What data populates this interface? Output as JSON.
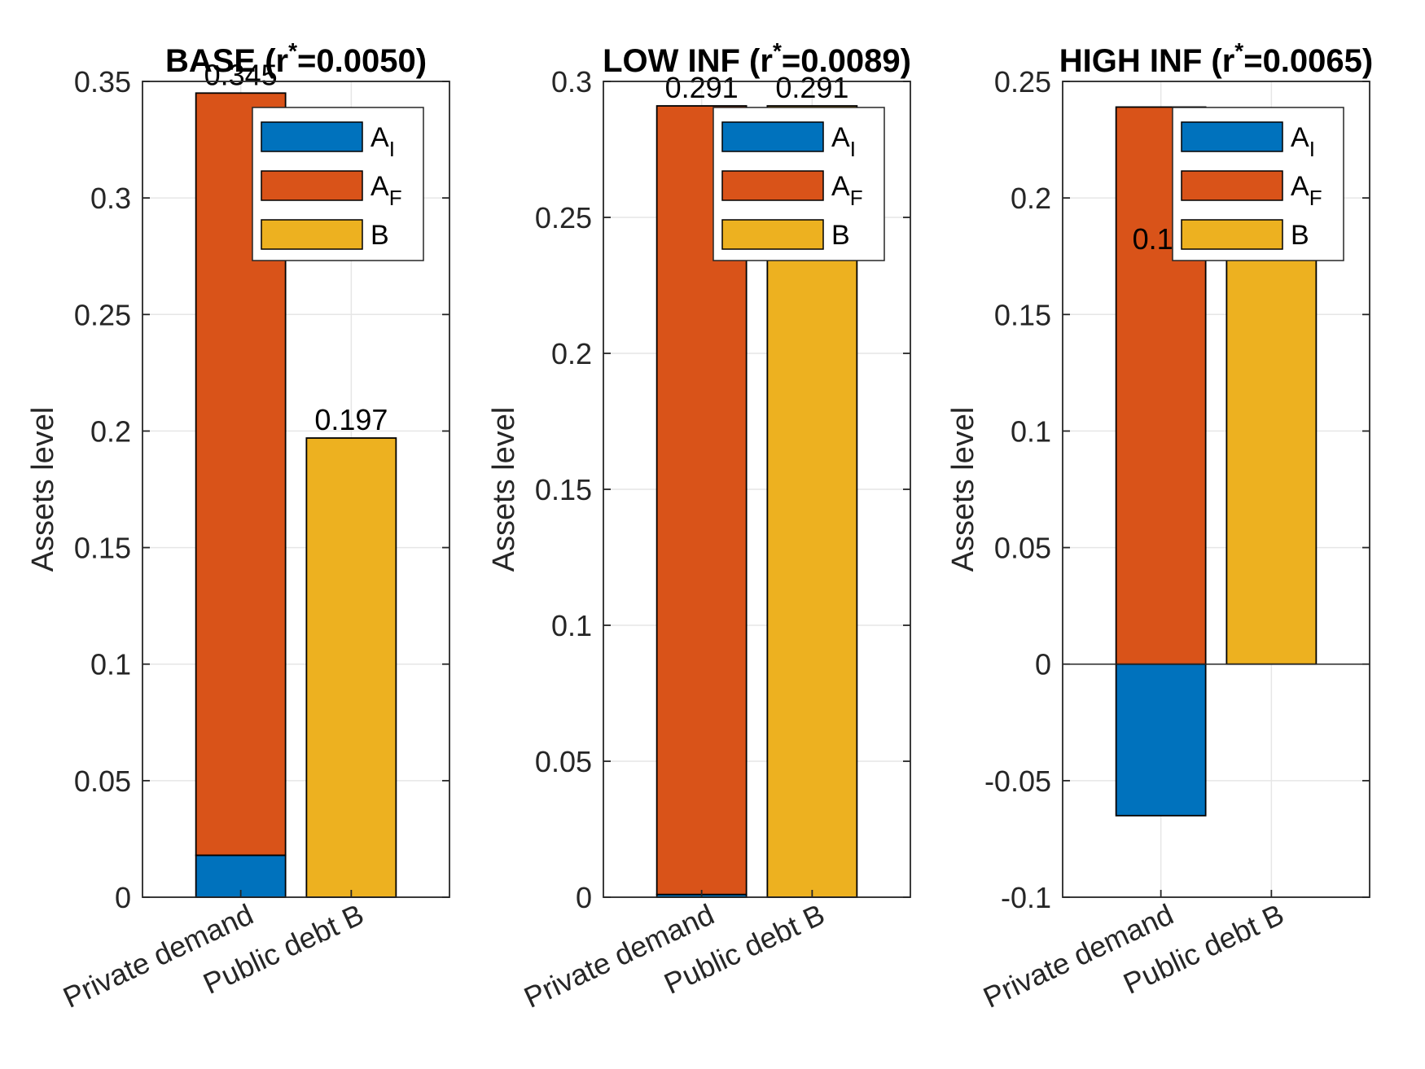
{
  "colors": {
    "A_I": "#0072BD",
    "A_F": "#D95319",
    "B": "#EDB120",
    "grid": "#e6e6e6",
    "axis": "#262626"
  },
  "chart_data": [
    {
      "type": "bar",
      "stacked": true,
      "title_main": "BASE (r",
      "title_sup": "*",
      "title_rest": "=0.0050)",
      "ylabel": "Assets level",
      "categories": [
        "Private demand",
        "Public debt B"
      ],
      "ylim": [
        0,
        0.35
      ],
      "yticks": [
        0,
        0.05,
        0.1,
        0.15,
        0.2,
        0.25,
        0.3,
        0.35
      ],
      "ytick_labels": [
        "0",
        "0.05",
        "0.1",
        "0.15",
        "0.2",
        "0.25",
        "0.3",
        "0.35"
      ],
      "series": [
        {
          "key": "A_I",
          "values": [
            0.018,
            0
          ]
        },
        {
          "key": "A_F",
          "values": [
            0.327,
            0
          ]
        },
        {
          "key": "B",
          "values": [
            0,
            0.197
          ]
        }
      ],
      "data_labels": [
        "0.345",
        "0.197"
      ],
      "grid": true
    },
    {
      "type": "bar",
      "stacked": true,
      "title_main": "LOW INF (r",
      "title_sup": "*",
      "title_rest": "=0.0089)",
      "ylabel": "Assets level",
      "categories": [
        "Private demand",
        "Public debt B"
      ],
      "ylim": [
        0,
        0.3
      ],
      "yticks": [
        0,
        0.05,
        0.1,
        0.15,
        0.2,
        0.25,
        0.3
      ],
      "ytick_labels": [
        "0",
        "0.05",
        "0.1",
        "0.15",
        "0.2",
        "0.25",
        "0.3"
      ],
      "series": [
        {
          "key": "A_I",
          "values": [
            0.001,
            0
          ]
        },
        {
          "key": "A_F",
          "values": [
            0.29,
            0
          ]
        },
        {
          "key": "B",
          "values": [
            0,
            0.291
          ]
        }
      ],
      "data_labels": [
        "0.291",
        "0.291"
      ],
      "grid": true
    },
    {
      "type": "bar",
      "stacked": true,
      "title_main": "HIGH INF (r",
      "title_sup": "*",
      "title_rest": "=0.0065)",
      "ylabel": "Assets level",
      "categories": [
        "Private demand",
        "Public debt B"
      ],
      "ylim": [
        -0.1,
        0.25
      ],
      "yticks": [
        -0.1,
        -0.05,
        0,
        0.05,
        0.1,
        0.15,
        0.2,
        0.25
      ],
      "ytick_labels": [
        "-0.1",
        "-0.05",
        "0",
        "0.05",
        "0.1",
        "0.15",
        "0.2",
        "0.25"
      ],
      "series": [
        {
          "key": "A_I",
          "values": [
            -0.065,
            0
          ]
        },
        {
          "key": "A_F",
          "values": [
            0.239,
            0
          ]
        },
        {
          "key": "B",
          "values": [
            0,
            0.174
          ]
        }
      ],
      "data_labels": [
        "0.17",
        ""
      ],
      "grid": true
    }
  ],
  "legend": {
    "placement": "top-right",
    "entries": [
      {
        "key": "A_I",
        "main": "A",
        "sub": "I"
      },
      {
        "key": "A_F",
        "main": "A",
        "sub": "F"
      },
      {
        "key": "B",
        "main": "B",
        "sub": ""
      }
    ]
  }
}
